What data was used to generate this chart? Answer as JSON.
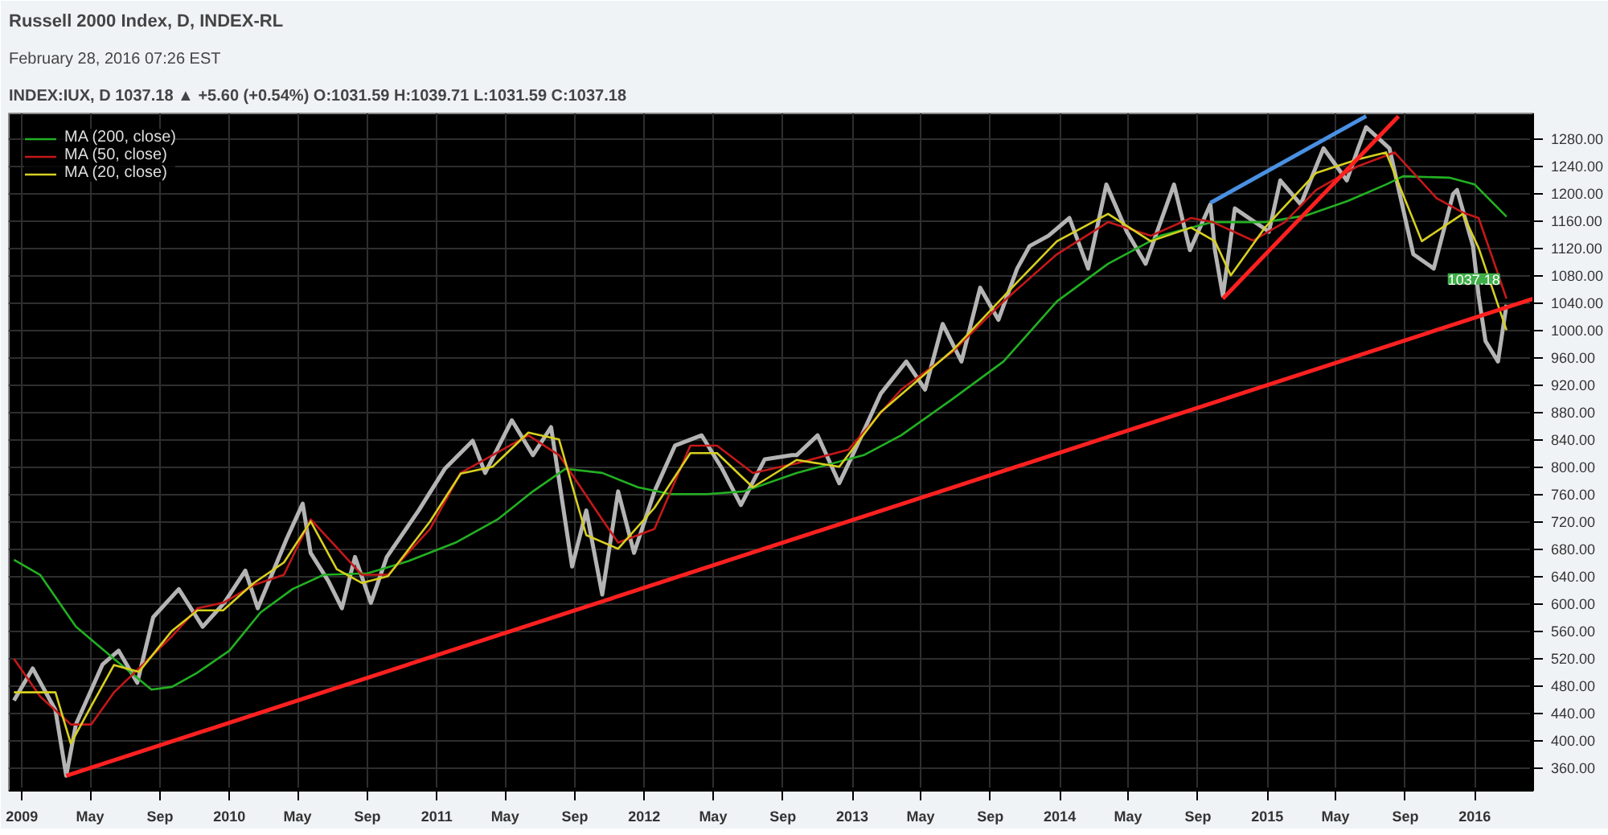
{
  "chart_data": {
    "type": "line",
    "title": "Russell 2000 Index, D, INDEX-RL",
    "subtitle": "INDEX:IUX, D 1037.18 ▲ +5.60 (+0.54%) O:1031.59 H:1039.71 L:1031.59 C:1037.18",
    "annotations": [
      "February 28, 2016 07:26 EST",
      {
        "text": "1037.18",
        "x": "2016-02-26",
        "y": 1037.18
      }
    ],
    "xlim": [
      "2008-12-09",
      "2016-04-13"
    ],
    "xticks": [
      {
        "value": "2009-01-01",
        "label": "2009"
      },
      {
        "value": "2009-05-01",
        "label": "May"
      },
      {
        "value": "2009-09-01",
        "label": "Sep"
      },
      {
        "value": "2010-01-01",
        "label": "2010"
      },
      {
        "value": "2010-05-01",
        "label": "May"
      },
      {
        "value": "2010-09-01",
        "label": "Sep"
      },
      {
        "value": "2011-01-01",
        "label": "2011"
      },
      {
        "value": "2011-05-01",
        "label": "May"
      },
      {
        "value": "2011-09-01",
        "label": "Sep"
      },
      {
        "value": "2012-01-01",
        "label": "2012"
      },
      {
        "value": "2012-05-01",
        "label": "May"
      },
      {
        "value": "2012-09-01",
        "label": "Sep"
      },
      {
        "value": "2013-01-01",
        "label": "2013"
      },
      {
        "value": "2013-05-01",
        "label": "May"
      },
      {
        "value": "2013-09-01",
        "label": "Sep"
      },
      {
        "value": "2014-01-01",
        "label": "2014"
      },
      {
        "value": "2014-05-01",
        "label": "May"
      },
      {
        "value": "2014-09-01",
        "label": "Sep"
      },
      {
        "value": "2015-01-01",
        "label": "2015"
      },
      {
        "value": "2015-05-01",
        "label": "May"
      },
      {
        "value": "2015-09-01",
        "label": "Sep"
      },
      {
        "value": "2016-01-01",
        "label": "2016"
      }
    ],
    "ylim": [
      326,
      1317
    ],
    "yticks": [
      {
        "value": 360,
        "label": "360.00"
      },
      {
        "value": 400,
        "label": "400.00"
      },
      {
        "value": 440,
        "label": "440.00"
      },
      {
        "value": 480,
        "label": "480.00"
      },
      {
        "value": 520,
        "label": "520.00"
      },
      {
        "value": 560,
        "label": "560.00"
      },
      {
        "value": 600,
        "label": "600.00"
      },
      {
        "value": 640,
        "label": "640.00"
      },
      {
        "value": 680,
        "label": "680.00"
      },
      {
        "value": 720,
        "label": "720.00"
      },
      {
        "value": 760,
        "label": "760.00"
      },
      {
        "value": 800,
        "label": "800.00"
      },
      {
        "value": 840,
        "label": "840.00"
      },
      {
        "value": 880,
        "label": "880.00"
      },
      {
        "value": 920,
        "label": "920.00"
      },
      {
        "value": 960,
        "label": "960.00"
      },
      {
        "value": 1000,
        "label": "1000.00"
      },
      {
        "value": 1040,
        "label": "1040.00"
      },
      {
        "value": 1080,
        "label": "1080.00"
      },
      {
        "value": 1120,
        "label": "1120.00"
      },
      {
        "value": 1160,
        "label": "1160.00"
      },
      {
        "value": 1200,
        "label": "1200.00"
      },
      {
        "value": 1240,
        "label": "1240.00"
      },
      {
        "value": 1280,
        "label": "1280.00"
      }
    ],
    "grid": true,
    "legend": "top left",
    "series": [
      {
        "color": "#b4b4b4",
        "x": [
          "2008-12-18",
          "2009-01-20",
          "2009-03-01",
          "2009-03-20",
          "2009-04-06",
          "2009-05-23",
          "2009-06-20",
          "2009-07-23",
          "2009-08-20",
          "2009-10-04",
          "2009-11-15",
          "2009-12-23",
          "2010-01-29",
          "2010-02-20",
          "2010-04-12",
          "2010-05-10",
          "2010-05-24",
          "2010-06-24",
          "2010-07-18",
          "2010-08-10",
          "2010-09-07",
          "2010-10-05",
          "2010-11-30",
          "2011-01-15",
          "2011-03-05",
          "2011-03-27",
          "2011-05-13",
          "2011-06-19",
          "2011-07-21",
          "2011-08-27",
          "2011-09-21",
          "2011-10-19",
          "2011-11-16",
          "2011-12-14",
          "2012-01-19",
          "2012-02-24",
          "2012-04-11",
          "2012-05-17",
          "2012-06-19",
          "2012-07-31",
          "2012-09-17",
          "2012-09-25",
          "2012-11-01",
          "2012-12-09",
          "2013-01-06",
          "2013-02-20",
          "2013-04-06",
          "2013-05-09",
          "2013-06-09",
          "2013-07-12",
          "2013-08-14",
          "2013-09-15",
          "2013-10-18",
          "2013-11-09",
          "2013-12-12",
          "2014-01-18",
          "2014-02-20",
          "2014-03-24",
          "2014-04-29",
          "2014-06-01",
          "2014-07-21",
          "2014-08-18",
          "2014-09-23",
          "2014-10-01",
          "2014-10-15",
          "2014-11-05",
          "2015-01-04",
          "2015-01-24",
          "2015-03-01",
          "2015-04-10",
          "2015-05-21",
          "2015-06-10",
          "2015-06-24",
          "2015-08-04",
          "2015-09-15",
          "2015-10-21",
          "2015-11-24",
          "2015-12-01",
          "2015-12-29",
          "2016-01-08",
          "2016-01-20",
          "2016-02-11",
          "2016-02-26"
        ],
        "values": [
          458,
          505,
          444,
          348,
          423,
          511,
          531,
          484,
          580,
          621,
          566,
          601,
          648,
          593,
          695,
          746,
          674,
          633,
          593,
          668,
          601,
          668,
          736,
          797,
          838,
          791,
          868,
          817,
          858,
          654,
          736,
          613,
          764,
          674,
          764,
          831,
          846,
          797,
          744,
          811,
          817,
          817,
          846,
          776,
          825,
          907,
          954,
          913,
          1009,
          954,
          1062,
          1015,
          1090,
          1123,
          1138,
          1164,
          1090,
          1213,
          1144,
          1097,
          1213,
          1117,
          1184,
          1117,
          1050,
          1178,
          1144,
          1219,
          1184,
          1266,
          1219,
          1266,
          1297,
          1266,
          1111,
          1090,
          1199,
          1205,
          1123,
          1050,
          984,
          954,
          1037.18
        ]
      },
      {
        "name": "MA (200, close)",
        "color": "#22b022",
        "x": [
          "2008-12-18",
          "2009-02-02",
          "2009-04-06",
          "2009-06-12",
          "2009-08-17",
          "2009-09-22",
          "2009-11-06",
          "2010-01-01",
          "2010-02-25",
          "2010-04-22",
          "2010-06-16",
          "2010-09-01",
          "2010-11-12",
          "2011-02-03",
          "2011-04-18",
          "2011-06-19",
          "2011-08-15",
          "2011-10-19",
          "2011-12-21",
          "2012-02-16",
          "2012-04-20",
          "2012-06-24",
          "2012-09-25",
          "2013-01-21",
          "2013-03-28",
          "2013-06-26",
          "2013-09-24",
          "2013-12-27",
          "2014-03-27",
          "2014-06-27",
          "2014-09-27",
          "2014-12-28",
          "2015-03-12",
          "2015-05-23",
          "2015-07-29",
          "2015-08-28",
          "2015-11-17",
          "2016-01-01",
          "2016-02-26"
        ],
        "values": [
          664,
          642,
          566,
          519,
          474,
          478,
          499,
          531,
          587,
          621,
          642,
          644,
          662,
          689,
          723,
          764,
          797,
          791,
          770,
          760,
          760,
          764,
          791,
          817,
          846,
          899,
          954,
          1042,
          1097,
          1138,
          1158,
          1158,
          1168,
          1189,
          1213,
          1225,
          1223,
          1213,
          1166
        ]
      },
      {
        "name": "MA (50, close)",
        "color": "#c41818",
        "x": [
          "2008-12-18",
          "2009-02-02",
          "2009-03-28",
          "2009-05-03",
          "2009-06-12",
          "2009-07-26",
          "2009-09-22",
          "2009-11-06",
          "2009-12-21",
          "2010-02-13",
          "2010-04-07",
          "2010-05-24",
          "2010-07-09",
          "2010-08-22",
          "2010-10-07",
          "2010-12-20",
          "2011-02-12",
          "2011-04-09",
          "2011-06-11",
          "2011-08-04",
          "2011-10-19",
          "2011-11-16",
          "2012-01-19",
          "2012-03-22",
          "2012-05-08",
          "2012-07-10",
          "2012-09-25",
          "2012-12-25",
          "2013-03-28",
          "2013-06-26",
          "2013-09-24",
          "2013-12-27",
          "2014-03-27",
          "2014-06-10",
          "2014-08-20",
          "2014-09-27",
          "2014-12-07",
          "2015-02-01",
          "2015-03-28",
          "2015-06-10",
          "2015-08-13",
          "2015-10-26",
          "2015-12-11",
          "2016-01-08",
          "2016-02-26"
        ],
        "values": [
          519,
          464,
          423,
          423,
          470,
          505,
          552,
          593,
          601,
          627,
          642,
          723,
          682,
          642,
          642,
          709,
          791,
          817,
          846,
          817,
          723,
          689,
          709,
          831,
          831,
          791,
          805,
          825,
          913,
          968,
          1042,
          1111,
          1158,
          1138,
          1164,
          1158,
          1131,
          1158,
          1205,
          1240,
          1260,
          1193,
          1172,
          1164,
          1046
        ]
      },
      {
        "name": "MA (20, close)",
        "color": "#d8d020",
        "x": [
          "2008-12-18",
          "2009-03-01",
          "2009-03-28",
          "2009-05-03",
          "2009-06-12",
          "2009-07-26",
          "2009-09-22",
          "2009-11-06",
          "2009-12-21",
          "2010-02-13",
          "2010-04-07",
          "2010-05-24",
          "2010-07-09",
          "2010-08-22",
          "2010-10-07",
          "2010-12-20",
          "2011-02-12",
          "2011-04-09",
          "2011-06-11",
          "2011-08-04",
          "2011-09-21",
          "2011-11-16",
          "2012-01-19",
          "2012-03-22",
          "2012-05-08",
          "2012-07-10",
          "2012-09-25",
          "2012-12-09",
          "2013-02-20",
          "2013-06-26",
          "2013-10-18",
          "2013-12-27",
          "2014-03-27",
          "2014-06-10",
          "2014-08-20",
          "2014-10-01",
          "2014-10-29",
          "2014-12-28",
          "2015-03-28",
          "2015-06-10",
          "2015-07-29",
          "2015-09-30",
          "2015-12-11",
          "2016-01-08",
          "2016-02-26"
        ],
        "values": [
          470,
          470,
          395,
          450,
          510,
          500,
          560,
          590,
          590,
          630,
          660,
          720,
          650,
          630,
          640,
          720,
          790,
          800,
          850,
          840,
          700,
          680,
          740,
          820,
          820,
          770,
          810,
          800,
          880,
          970,
          1070,
          1130,
          1170,
          1130,
          1150,
          1130,
          1080,
          1150,
          1230,
          1250,
          1260,
          1130,
          1170,
          1120,
          1000
        ]
      },
      {
        "color": "#ff2020",
        "x": [
          "2009-03-20",
          "2016-04-13"
        ],
        "values": [
          348,
          1046
        ]
      },
      {
        "color": "#ff2020",
        "x": [
          "2014-10-15",
          "2015-08-20"
        ],
        "values": [
          1046,
          1313
        ]
      },
      {
        "color": "#4a90e2",
        "x": [
          "2014-09-23",
          "2015-06-24"
        ],
        "values": [
          1186,
          1313
        ]
      }
    ]
  }
}
